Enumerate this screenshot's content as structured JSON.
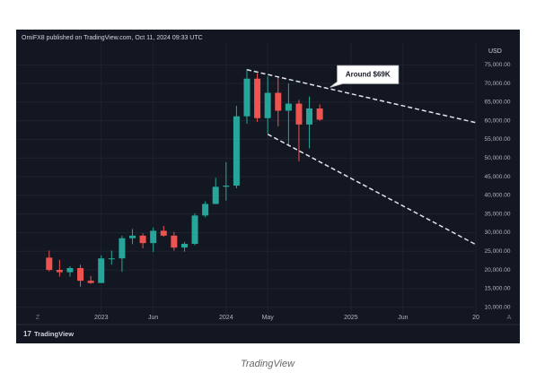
{
  "chart_data": {
    "type": "candlestick",
    "title": "OmiFX8 published on TradingView.com, Oct 11, 2024 09:33 UTC",
    "y_axis_label": "USD",
    "x": [
      "2022-08",
      "2022-09",
      "2022-10",
      "2022-11",
      "2022-12",
      "2023-01",
      "2023-02",
      "2023-03",
      "2023-04",
      "2023-05",
      "2023-06",
      "2023-07",
      "2023-08",
      "2023-09",
      "2023-10",
      "2023-11",
      "2023-12",
      "2024-01",
      "2024-02",
      "2024-03",
      "2024-04",
      "2024-05",
      "2024-06",
      "2024-07",
      "2024-08",
      "2024-09",
      "2024-10"
    ],
    "open": [
      23300,
      20000,
      19400,
      20500,
      17100,
      16500,
      23100,
      23100,
      28500,
      29200,
      27200,
      30500,
      29200,
      26000,
      27000,
      34600,
      37700,
      42300,
      42600,
      61200,
      71300,
      60700,
      67500,
      62700,
      64600,
      59000,
      63300
    ],
    "high": [
      25200,
      22700,
      21000,
      21400,
      18400,
      23900,
      25200,
      29200,
      31000,
      29800,
      31400,
      31800,
      30200,
      27500,
      35200,
      38400,
      44700,
      48900,
      64000,
      73800,
      72700,
      71900,
      71900,
      70000,
      65600,
      66500,
      64400
    ],
    "low": [
      19600,
      18200,
      18200,
      15500,
      16300,
      16500,
      21400,
      19500,
      26900,
      25800,
      24800,
      28900,
      25200,
      24900,
      26600,
      34100,
      37600,
      38600,
      41900,
      59200,
      59700,
      56600,
      58500,
      53500,
      49100,
      52600,
      60000
    ],
    "close": [
      20000,
      19400,
      20500,
      17100,
      16500,
      23100,
      23100,
      28500,
      29200,
      27200,
      30500,
      29200,
      26000,
      27000,
      34600,
      37700,
      42300,
      42600,
      61200,
      71300,
      60700,
      67500,
      62700,
      64600,
      59000,
      63300,
      60300
    ],
    "up_color": "#26a69a",
    "down_color": "#ef5350",
    "xlim": [
      "2022-05",
      "2026-01"
    ],
    "xticks": [
      {
        "value": "2023-01",
        "label": "2023"
      },
      {
        "value": "2023-06",
        "label": "Jun"
      },
      {
        "value": "2024-01",
        "label": "2024"
      },
      {
        "value": "2024-05",
        "label": "May"
      },
      {
        "value": "2025-01",
        "label": "2025"
      },
      {
        "value": "2025-06",
        "label": "Jun"
      },
      {
        "value": "2026-01",
        "label": "20"
      }
    ],
    "ylim": [
      8000,
      77000
    ],
    "yticks": [
      {
        "value": 10000,
        "label": "10,000.00"
      },
      {
        "value": 15000,
        "label": "15,000.00"
      },
      {
        "value": 20000,
        "label": "20,000.00"
      },
      {
        "value": 25000,
        "label": "25,000.00"
      },
      {
        "value": 30000,
        "label": "30,000.00"
      },
      {
        "value": 35000,
        "label": "35,000.00"
      },
      {
        "value": 40000,
        "label": "40,000.00"
      },
      {
        "value": 45000,
        "label": "45,000.00"
      },
      {
        "value": 50000,
        "label": "50,000.00"
      },
      {
        "value": 55000,
        "label": "55,000.00"
      },
      {
        "value": 60000,
        "label": "60,000.00"
      },
      {
        "value": 65000,
        "label": "65,000.00"
      },
      {
        "value": 70000,
        "label": "70,000.00"
      },
      {
        "value": 75000,
        "label": "75,000.00"
      }
    ],
    "grid": true,
    "trendlines": [
      {
        "x": [
          "2024-03",
          "2026-01"
        ],
        "y": [
          73700,
          59500
        ]
      },
      {
        "x": [
          "2024-05",
          "2026-01"
        ],
        "y": [
          56400,
          26800
        ]
      }
    ],
    "annotations": [
      {
        "text": "Around $69K",
        "x": "2024-11",
        "y": 69000
      }
    ]
  },
  "logo_text": "TradingView",
  "caption": "TradingView"
}
